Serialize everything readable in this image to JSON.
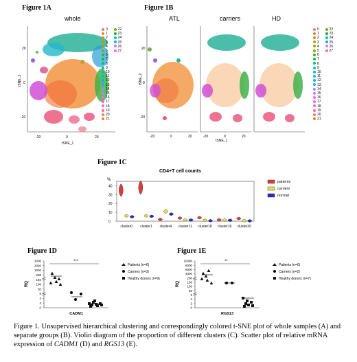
{
  "fig1a": {
    "label": "Figure 1A",
    "title": "whole",
    "xlabel": "tSNE_1",
    "ylabel": "tSNE_2",
    "xticks": [
      "-20",
      "0",
      "20"
    ],
    "yticks": [
      "20",
      "0",
      "-20"
    ],
    "clusters_col1": [
      "0",
      "1",
      "2",
      "3",
      "4",
      "5",
      "6",
      "7",
      "8",
      "9",
      "10",
      "11",
      "12",
      "13",
      "14",
      "15",
      "16",
      "17",
      "18",
      "19",
      "20",
      "21"
    ],
    "clusters_col2": [
      "22",
      "23",
      "24",
      "25",
      "26",
      "27"
    ]
  },
  "fig1b": {
    "label": "Figure 1B",
    "panels": [
      "ATL",
      "carriers",
      "HD"
    ],
    "xlabel": "tSNE_1",
    "ylabel": "tSNE_2",
    "xticks": [
      "-20",
      "0",
      "20"
    ],
    "yticks": [
      "20",
      "0",
      "-20"
    ],
    "legend_col1": [
      "0",
      "1",
      "2",
      "3",
      "4",
      "5",
      "6",
      "7",
      "8",
      "9",
      "10",
      "11",
      "12",
      "13",
      "14",
      "15",
      "16",
      "17",
      "18",
      "19",
      "20",
      "21"
    ],
    "legend_col2": [
      "22",
      "23",
      "24",
      "25",
      "26",
      "27"
    ]
  },
  "fig1c": {
    "label": "Figure 1C",
    "title": "CD4+T cell counts",
    "ylabel": "%",
    "yticks": [
      "40",
      "30",
      "20",
      "10",
      "0"
    ],
    "legend": [
      {
        "name": "patients",
        "color": "#e03a3a"
      },
      {
        "name": "carriers",
        "color": "#e6e04a"
      },
      {
        "name": "normal",
        "color": "#2a2ad0"
      }
    ]
  },
  "chart_data": [
    {
      "type": "violin",
      "title": "CD4+T cell counts",
      "ylabel": "%",
      "ylim": [
        0,
        45
      ],
      "categories": [
        "cluster0",
        "cluster1",
        "cluster4",
        "cluster11",
        "cluster18",
        "cluster19",
        "cluster20"
      ],
      "series": [
        {
          "name": "patients",
          "values": [
            35,
            38,
            2,
            3.5,
            4,
            1.5,
            3
          ]
        },
        {
          "name": "carriers",
          "values": [
            6,
            6,
            11,
            1.5,
            1,
            1.2,
            0.5
          ]
        },
        {
          "name": "normal",
          "values": [
            5,
            5.5,
            8,
            1.3,
            0.5,
            1,
            0.4
          ]
        }
      ]
    },
    {
      "type": "scatter",
      "label": "Figure 1D",
      "ylabel": "RQ",
      "xlabel": "CADM1",
      "yticks": [
        "3000",
        "2000",
        "1000",
        "200",
        "150",
        "100",
        "50",
        "6",
        "4",
        "2",
        "0"
      ],
      "significance": "***",
      "legend": [
        "Patients (n=6)",
        "Carriers (n=3)",
        "Healthy donors (n=9)"
      ]
    },
    {
      "type": "scatter",
      "label": "Figure 1E",
      "ylabel": "RQ",
      "xlabel": "RGS13",
      "yticks": [
        "10000",
        "8000",
        "6000",
        "4000",
        "200",
        "150",
        "100",
        "50",
        "6",
        "4",
        "2",
        "0"
      ],
      "significance": "**",
      "legend": [
        "Patients (n=6)",
        "Carriers (n=2)",
        "Healthy donors (n=7)"
      ]
    }
  ],
  "caption": {
    "part1": "Figure 1. Unsupervised hierarchical clustering and correspondingly colored t-SNE plot of whole samples (A) and separate groups (B). Violin diagram of the proportion of different clusters (C). Scatter plot of relative mRNA expression of ",
    "gene1": "CADM1",
    "part2": " (D) and ",
    "gene2": "RGS13",
    "part3": " (E)."
  }
}
